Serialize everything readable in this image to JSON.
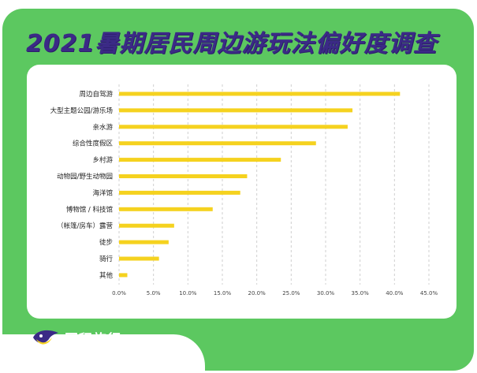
{
  "title": "2021暑期居民周边游玩法偏好度调查",
  "brand": {
    "name": "同程旅行",
    "logo_icon": "tongcheng-bird-logo-icon"
  },
  "colors": {
    "background": "#5cc860",
    "title": "#3b2a86",
    "bar": "#f5d21f",
    "grid": "#cfcfcf"
  },
  "chart_data": {
    "type": "bar",
    "orientation": "horizontal",
    "categories": [
      "周边自驾游",
      "大型主题公园/游乐场",
      "亲水游",
      "综合性度假区",
      "乡村游",
      "动物园/野生动物园",
      "海洋馆",
      "博物馆 / 科技馆",
      "（帐篷/房车）露营",
      "徒步",
      "骑行",
      "其他"
    ],
    "values": [
      40.8,
      33.9,
      33.2,
      28.6,
      23.5,
      18.6,
      17.6,
      13.6,
      8.0,
      7.2,
      5.8,
      1.2
    ],
    "xlim": [
      0,
      45
    ],
    "xticks": [
      "0.0%",
      "5.0%",
      "10.0%",
      "15.0%",
      "20.0%",
      "25.0%",
      "30.0%",
      "35.0%",
      "40.0%",
      "45.0%"
    ],
    "grid": "vertical dashed"
  }
}
